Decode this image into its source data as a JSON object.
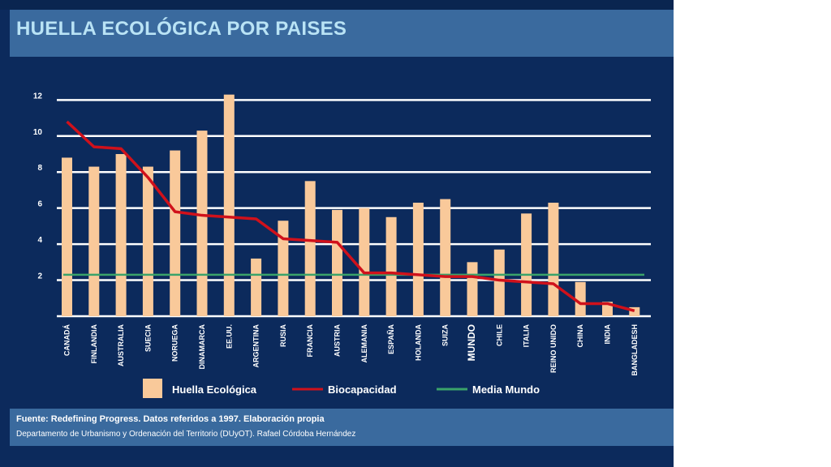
{
  "title": "HUELLA ECOLÓGICA POR PAISES",
  "footer": {
    "source": "Fuente: Redefining Progress. Datos referidos a 1997. Elaboración propia",
    "department": "Departamento de Urbanismo y Ordenación del Territorio (DUyOT). Rafael Córdoba Hernández"
  },
  "colors": {
    "background": "#0c2a5c",
    "band": "#3a6a9e",
    "bars": "#f9c99a",
    "biocapacidad": "#d0111b",
    "media_mundo": "#3aa36a",
    "grid": "#ffffff"
  },
  "chart_data": {
    "type": "bar",
    "categories": [
      "CANADÁ",
      "FINLANDIA",
      "AUSTRALIA",
      "SUECIA",
      "NORUEGA",
      "DINAMARCA",
      "EE.UU.",
      "ARGENTINA",
      "RUSIA",
      "FRANCIA",
      "AUSTRIA",
      "ALEMANIA",
      "ESPAÑA",
      "HOLANDA",
      "SUIZA",
      "MUNDO",
      "CHILE",
      "ITALIA",
      "REINO UNIDO",
      "CHINA",
      "INDIA",
      "BANGLADESH"
    ],
    "series": [
      {
        "name": "Huella Ecológica",
        "type": "bar",
        "values": [
          8.8,
          8.3,
          9.0,
          8.3,
          9.2,
          10.3,
          12.3,
          3.2,
          5.3,
          7.5,
          5.9,
          6.0,
          5.5,
          6.3,
          6.5,
          3.0,
          3.7,
          5.7,
          6.3,
          1.9,
          0.8,
          0.5
        ]
      },
      {
        "name": "Biocapacidad",
        "type": "line",
        "values": [
          10.8,
          9.4,
          9.3,
          7.7,
          5.8,
          5.6,
          5.5,
          5.4,
          4.3,
          4.2,
          4.1,
          2.4,
          2.4,
          2.3,
          2.2,
          2.2,
          2.0,
          1.9,
          1.8,
          0.7,
          0.7,
          0.3
        ]
      },
      {
        "name": "Media Mundo",
        "type": "line",
        "values": [
          2.3,
          2.3,
          2.3,
          2.3,
          2.3,
          2.3,
          2.3,
          2.3,
          2.3,
          2.3,
          2.3,
          2.3,
          2.3,
          2.3,
          2.3,
          2.3,
          2.3,
          2.3,
          2.3,
          2.3,
          2.3,
          2.3
        ]
      }
    ],
    "y_ticks": [
      2,
      4,
      6,
      8,
      10,
      12
    ],
    "ylim": [
      0,
      12.6
    ],
    "grid": true,
    "legend_position": "bottom"
  }
}
